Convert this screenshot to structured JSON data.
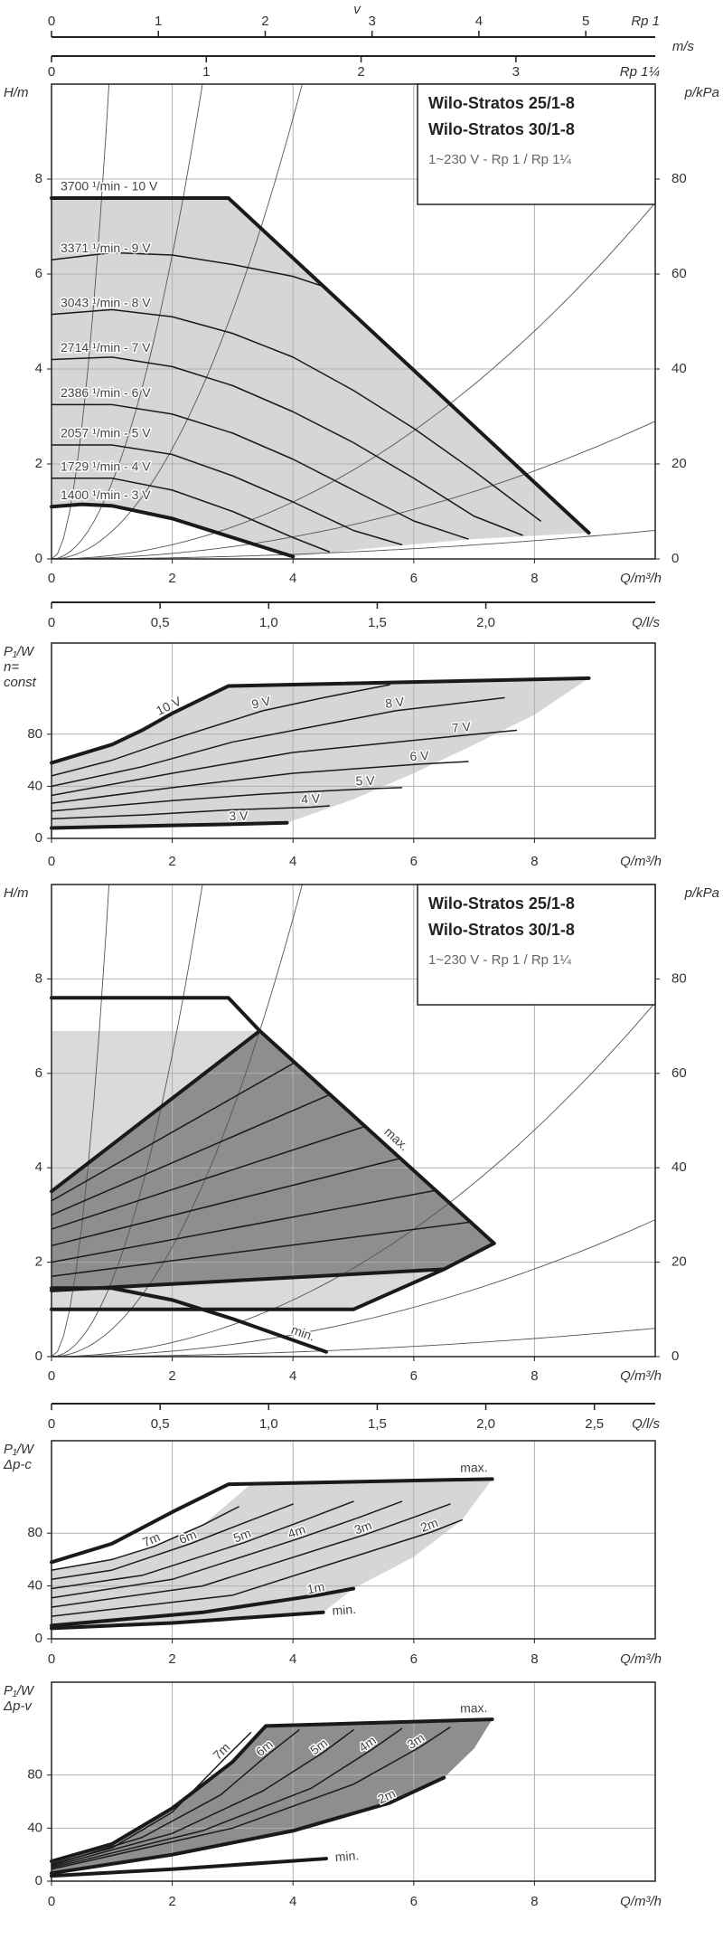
{
  "chart_data": [
    {
      "type": "axis",
      "axis_label": "v",
      "unit": "m/s",
      "scale_label": "Rp 1",
      "xlim": [
        0,
        5.65
      ],
      "xticks": [
        0,
        1,
        2,
        3,
        4,
        5
      ]
    },
    {
      "type": "axis",
      "scale_label": "Rp 1¼",
      "xlim": [
        0,
        3.9
      ],
      "xticks": [
        0,
        1,
        2,
        3
      ]
    },
    {
      "type": "line",
      "color": "#1a1a1a",
      "grid": true,
      "y_label": [
        "H/m"
      ],
      "y2_label": "p/kPa",
      "x_label": "Q/m³/h",
      "box_lines": [
        "Wilo-Stratos 25/1-8",
        "Wilo-Stratos 30/1-8",
        "1~230 V - Rp 1 / Rp 1¼"
      ],
      "xlim": [
        0,
        10
      ],
      "xticks": [
        0,
        2,
        4,
        6,
        8
      ],
      "ylim": [
        0,
        10
      ],
      "yticks": [
        0,
        2,
        4,
        6,
        8
      ],
      "y2lim": [
        0,
        100
      ],
      "y2ticks": [
        0,
        20,
        40,
        60,
        80
      ],
      "regions": [
        {
          "color": "#d6d6d6",
          "x": [
            0,
            2.93,
            8.9,
            7,
            5.5,
            4,
            3,
            2,
            1,
            0
          ],
          "values": [
            7.6,
            7.6,
            0.55,
            0.42,
            0.25,
            0.05,
            0.45,
            0.85,
            1.12,
            1.1
          ]
        }
      ],
      "series": [
        {
          "name": "3700 ¹/min - 10 V",
          "thick": true,
          "x": [
            0,
            2.93,
            8.9
          ],
          "values": [
            7.6,
            7.6,
            0.55
          ]
        },
        {
          "name": "3371 ¹/min - 9 V",
          "x": [
            0,
            1,
            2,
            3,
            4,
            4.5
          ],
          "values": [
            6.3,
            6.45,
            6.4,
            6.2,
            5.95,
            5.74
          ]
        },
        {
          "name": "3043 ¹/min - 8 V",
          "x": [
            0,
            1,
            2,
            3,
            4,
            5,
            6,
            7,
            8.1
          ],
          "values": [
            5.15,
            5.25,
            5.1,
            4.75,
            4.25,
            3.55,
            2.75,
            1.85,
            0.8
          ]
        },
        {
          "name": "2714 ¹/min - 7 V",
          "x": [
            0,
            1,
            2,
            3,
            4,
            5,
            6,
            7,
            7.8
          ],
          "values": [
            4.2,
            4.25,
            4.05,
            3.65,
            3.1,
            2.45,
            1.7,
            0.9,
            0.5
          ]
        },
        {
          "name": "2386 ¹/min - 6 V",
          "x": [
            0,
            1,
            2,
            3,
            4,
            5,
            6,
            6.9
          ],
          "values": [
            3.25,
            3.25,
            3.05,
            2.65,
            2.1,
            1.45,
            0.8,
            0.42
          ]
        },
        {
          "name": "2057 ¹/min - 5 V",
          "x": [
            0,
            1,
            2,
            3,
            4,
            5,
            5.8
          ],
          "values": [
            2.4,
            2.4,
            2.2,
            1.75,
            1.2,
            0.6,
            0.3
          ]
        },
        {
          "name": "1729 ¹/min - 4 V",
          "x": [
            0,
            1,
            2,
            3,
            4,
            4.6
          ],
          "values": [
            1.7,
            1.7,
            1.45,
            1.0,
            0.45,
            0.15
          ]
        },
        {
          "name": "1400 ¹/min - 3 V",
          "thick": true,
          "x": [
            0,
            0.5,
            1,
            2,
            3,
            4
          ],
          "values": [
            1.1,
            1.15,
            1.12,
            0.85,
            0.45,
            0.05
          ]
        }
      ]
    },
    {
      "type": "axis",
      "axis_label": "Q/l/s",
      "xlim": [
        0,
        2.78
      ],
      "xticks": [
        0,
        {
          "value": 0.5,
          "label": "0,5"
        },
        {
          "value": 1.0,
          "label": "1,0"
        },
        {
          "value": 1.5,
          "label": "1,5"
        },
        {
          "value": 2.0,
          "label": "2,0"
        }
      ]
    },
    {
      "type": "line",
      "color": "#1a1a1a",
      "grid": true,
      "y_label": [
        "P₁/W",
        "n=",
        "const"
      ],
      "x_label": "Q/m³/h",
      "xlim": [
        0,
        10
      ],
      "xticks": [
        0,
        2,
        4,
        6,
        8
      ],
      "ylim": [
        0,
        150
      ],
      "yticks": [
        0,
        40,
        80
      ],
      "regions": [
        {
          "color": "#d6d6d6",
          "x": [
            0,
            1,
            1.5,
            2,
            2.93,
            8.9,
            8,
            7,
            6,
            5,
            3.9,
            3,
            2,
            1,
            0
          ],
          "values": [
            58,
            72,
            83,
            96,
            117,
            123,
            95,
            72,
            50,
            30,
            12,
            11,
            10,
            9,
            8
          ]
        }
      ],
      "series": [
        {
          "name": "10 V",
          "thick": true,
          "x": [
            0,
            1,
            1.5,
            2,
            2.93,
            8.9
          ],
          "values": [
            58,
            72,
            83,
            96,
            117,
            123
          ]
        },
        {
          "name": "9 V",
          "x": [
            0,
            1,
            2,
            3.5,
            4.5,
            5.6
          ],
          "values": [
            48,
            60,
            76,
            98,
            108,
            118
          ]
        },
        {
          "name": "8 V",
          "x": [
            0,
            1.5,
            3,
            5.7,
            7.5
          ],
          "values": [
            40,
            55,
            74,
            98,
            108
          ]
        },
        {
          "name": "7 V",
          "x": [
            0,
            2,
            4,
            6.8,
            7.7
          ],
          "values": [
            33,
            50,
            66,
            79,
            83
          ]
        },
        {
          "name": "6 V",
          "x": [
            0,
            2,
            4,
            6.1,
            6.9
          ],
          "values": [
            27,
            39,
            50,
            57,
            59
          ]
        },
        {
          "name": "5 V",
          "x": [
            0,
            2,
            3.5,
            5.2,
            5.8
          ],
          "values": [
            21,
            29,
            34,
            38,
            39
          ]
        },
        {
          "name": "4 V",
          "x": [
            0,
            1.5,
            3,
            4.3,
            4.6
          ],
          "values": [
            15,
            18,
            22,
            24,
            25
          ]
        },
        {
          "name": "3 V",
          "thick": true,
          "x": [
            0,
            1,
            2,
            3.1,
            3.9
          ],
          "values": [
            8,
            9,
            10,
            11,
            12
          ]
        }
      ]
    },
    {
      "type": "line",
      "color": "#1a1a1a",
      "grid": true,
      "y_label": [
        "H/m"
      ],
      "y2_label": "p/kPa",
      "x_label": "Q/m³/h",
      "box_lines": [
        "Wilo-Stratos 25/1-8",
        "Wilo-Stratos 30/1-8",
        "1~230 V - Rp 1 / Rp 1¼"
      ],
      "xlim": [
        0,
        10
      ],
      "xticks": [
        0,
        2,
        4,
        6,
        8
      ],
      "ylim": [
        0,
        10
      ],
      "yticks": [
        0,
        2,
        4,
        6,
        8
      ],
      "y2lim": [
        0,
        100
      ],
      "y2ticks": [
        0,
        20,
        40,
        60,
        80
      ],
      "regions": [
        {
          "color": "#dadada",
          "x": [
            0,
            0,
            3.45,
            7.33,
            6.5,
            5
          ],
          "values": [
            1.0,
            6.9,
            6.9,
            2.4,
            1.85,
            1.0
          ]
        },
        {
          "color": "#8e8e8e",
          "x": [
            0,
            3.45,
            7.33,
            6.5,
            0
          ],
          "values": [
            3.5,
            6.9,
            2.4,
            1.85,
            1.4
          ]
        }
      ],
      "series": [
        {
          "name": "max.",
          "thick": true,
          "x": [
            0,
            3.45,
            7.33
          ],
          "values": [
            3.5,
            6.9,
            2.4
          ]
        },
        {
          "thick": true,
          "x": [
            0,
            2.93,
            3.45
          ],
          "values": [
            7.6,
            7.6,
            6.9
          ]
        },
        {
          "thick": true,
          "x": [
            0,
            6.5,
            7.33
          ],
          "values": [
            1.4,
            1.85,
            2.4
          ]
        },
        {
          "thick": true,
          "x": [
            0,
            5,
            6.5
          ],
          "values": [
            1.0,
            1.0,
            1.85
          ]
        },
        {
          "name": "min.",
          "thick": true,
          "x": [
            0,
            1,
            2,
            3,
            4,
            4.55
          ],
          "values": [
            1.45,
            1.45,
            1.2,
            0.8,
            0.35,
            0.1
          ]
        },
        {
          "x": [
            0,
            6.94
          ],
          "values": [
            1.7,
            2.85
          ]
        },
        {
          "x": [
            0,
            6.36
          ],
          "values": [
            2.0,
            3.52
          ]
        },
        {
          "x": [
            0,
            5.78
          ],
          "values": [
            2.35,
            4.2
          ]
        },
        {
          "x": [
            0,
            5.2
          ],
          "values": [
            2.7,
            4.88
          ]
        },
        {
          "x": [
            0,
            4.61
          ],
          "values": [
            3.0,
            5.55
          ]
        },
        {
          "x": [
            0,
            4.03
          ],
          "values": [
            3.3,
            6.23
          ]
        }
      ]
    },
    {
      "type": "axis",
      "axis_label": "Q/l/s",
      "xlim": [
        0,
        2.78
      ],
      "xticks": [
        0,
        {
          "value": 0.5,
          "label": "0,5"
        },
        {
          "value": 1.0,
          "label": "1,0"
        },
        {
          "value": 1.5,
          "label": "1,5"
        },
        {
          "value": 2.0,
          "label": "2,0"
        },
        {
          "value": 2.5,
          "label": "2,5"
        }
      ]
    },
    {
      "type": "line",
      "color": "#1a1a1a",
      "grid": true,
      "y_label": [
        "P₁/W",
        "Δp-c"
      ],
      "x_label": "Q/m³/h",
      "xlim": [
        0,
        10
      ],
      "xticks": [
        0,
        2,
        4,
        6,
        8
      ],
      "ylim": [
        0,
        150
      ],
      "yticks": [
        0,
        40,
        80
      ],
      "regions": [
        {
          "color": "#d6d6d6",
          "x": [
            0,
            1,
            1.7,
            2.5,
            3.3,
            7.3,
            6.8,
            6,
            5,
            4.5,
            0
          ],
          "values": [
            52,
            60,
            70,
            86,
            117,
            121,
            90,
            62,
            38,
            20,
            8
          ]
        }
      ],
      "series": [
        {
          "name": "max.",
          "thick": true,
          "x": [
            0,
            1,
            2,
            2.93,
            7.3
          ],
          "values": [
            58,
            72,
            96,
            117,
            121
          ]
        },
        {
          "name": "7m",
          "x": [
            0,
            1,
            1.7,
            2.5,
            3.1
          ],
          "values": [
            52,
            60,
            70,
            86,
            100
          ]
        },
        {
          "name": "6m",
          "x": [
            0,
            1,
            2.3,
            3.2,
            4
          ],
          "values": [
            45,
            52,
            72,
            88,
            102
          ]
        },
        {
          "name": "5m",
          "x": [
            0,
            1.5,
            3.2,
            4.2,
            5
          ],
          "values": [
            38,
            48,
            73,
            90,
            104
          ]
        },
        {
          "name": "4m",
          "x": [
            0,
            2,
            4.1,
            5.1,
            5.8
          ],
          "values": [
            31,
            45,
            76,
            92,
            104
          ]
        },
        {
          "name": "3m",
          "x": [
            0,
            2.5,
            5.2,
            6,
            6.6
          ],
          "values": [
            24,
            40,
            79,
            92,
            102
          ]
        },
        {
          "name": "2m",
          "x": [
            0,
            3,
            6.3,
            6.8
          ],
          "values": [
            17,
            33,
            81,
            90
          ]
        },
        {
          "name": "1m",
          "thick": true,
          "x": [
            0,
            2.5,
            4.4,
            5
          ],
          "values": [
            10,
            20,
            33,
            38
          ]
        },
        {
          "name": "min.",
          "thick": true,
          "x": [
            0,
            2,
            4.5
          ],
          "values": [
            8,
            12,
            20
          ]
        }
      ]
    },
    {
      "type": "line",
      "color": "#1a1a1a",
      "grid": true,
      "y_label": [
        "P₁/W",
        "Δp-v"
      ],
      "x_label": "Q/m³/h",
      "xlim": [
        0,
        10
      ],
      "xticks": [
        0,
        2,
        4,
        6,
        8
      ],
      "ylim": [
        0,
        150
      ],
      "yticks": [
        0,
        40,
        80
      ],
      "regions": [
        {
          "color": "#8e8e8e",
          "x": [
            0,
            1,
            2,
            3,
            3.55,
            7.3,
            7,
            6.5,
            5.6,
            4,
            2,
            0
          ],
          "values": [
            15,
            28,
            55,
            90,
            117,
            122,
            100,
            78,
            59,
            38,
            20,
            6
          ]
        }
      ],
      "series": [
        {
          "name": "max.",
          "thick": true,
          "x": [
            0,
            1,
            2,
            3,
            3.55,
            7.3
          ],
          "values": [
            15,
            28,
            55,
            90,
            117,
            122
          ]
        },
        {
          "name": "7m",
          "x": [
            0,
            1,
            2,
            2.9,
            3.3
          ],
          "values": [
            13,
            25,
            52,
            94,
            112
          ]
        },
        {
          "name": "6m",
          "x": [
            0,
            1.5,
            2.8,
            3.6,
            4.1
          ],
          "values": [
            12,
            33,
            65,
            96,
            114
          ]
        },
        {
          "name": "5m",
          "x": [
            0,
            2,
            3.5,
            4.5,
            5
          ],
          "values": [
            11,
            36,
            68,
            97,
            114
          ]
        },
        {
          "name": "4m",
          "x": [
            0,
            2.5,
            4.3,
            5.3,
            5.8
          ],
          "values": [
            10,
            38,
            70,
            99,
            115
          ]
        },
        {
          "name": "3m",
          "x": [
            0,
            3,
            5,
            6.1,
            6.6
          ],
          "values": [
            9,
            40,
            73,
            101,
            116
          ]
        },
        {
          "name": "2m",
          "thick": true,
          "x": [
            0,
            2,
            4,
            5.6,
            6.5
          ],
          "values": [
            6,
            20,
            38,
            59,
            78
          ]
        },
        {
          "name": "min.",
          "thick": true,
          "x": [
            0,
            2,
            4.55
          ],
          "values": [
            4,
            9,
            17
          ]
        }
      ]
    }
  ]
}
